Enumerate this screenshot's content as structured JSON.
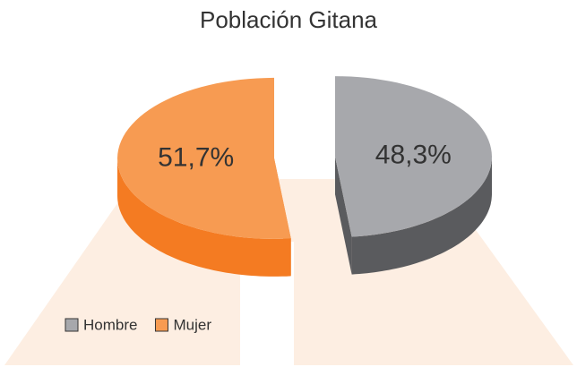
{
  "chart_data": {
    "type": "pie",
    "title": "Población Gitana",
    "categories": [
      "Hombre",
      "Mujer"
    ],
    "values": [
      48.3,
      51.7
    ],
    "value_labels": [
      "48,3%",
      "51,7%"
    ],
    "colors": [
      "#a7a8ac",
      "#f79b52"
    ],
    "side_colors": [
      "#5a5b5e",
      "#f47b22"
    ],
    "legend": "bottom-left"
  }
}
